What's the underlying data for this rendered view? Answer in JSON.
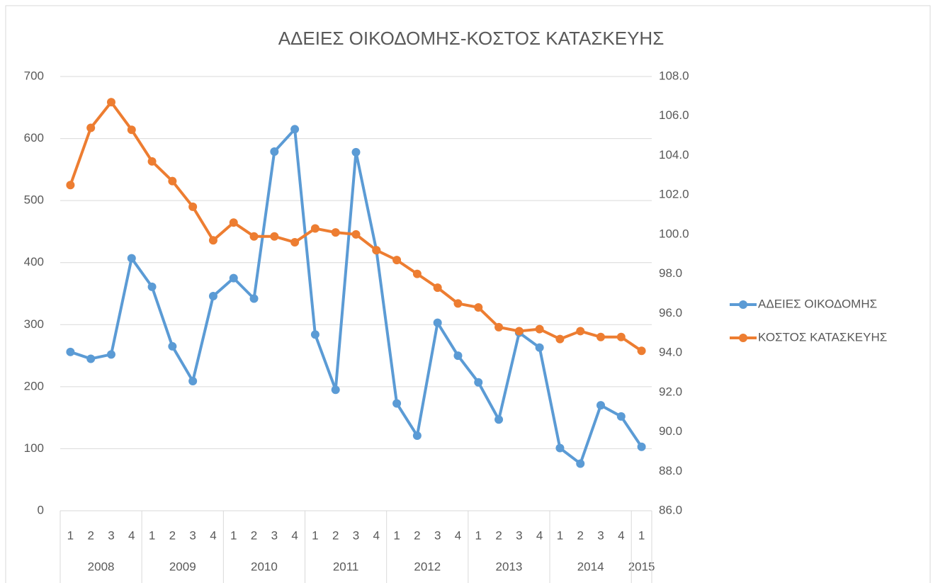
{
  "chart_data": {
    "type": "line",
    "title": "ΑΔΕΙΕΣ ΟΙΚΟΔΟΜΗΣ-ΚΟΣΤΟΣ ΚΑΤΑΣΚΕΥΗΣ",
    "categories": [
      "1",
      "2",
      "3",
      "4",
      "1",
      "2",
      "3",
      "4",
      "1",
      "2",
      "3",
      "4",
      "1",
      "2",
      "3",
      "4",
      "1",
      "2",
      "3",
      "4",
      "1",
      "2",
      "3",
      "4",
      "1",
      "2",
      "3",
      "4",
      "1"
    ],
    "groups": [
      "2008",
      "2008",
      "2008",
      "2008",
      "2009",
      "2009",
      "2009",
      "2009",
      "2010",
      "2010",
      "2010",
      "2010",
      "2011",
      "2011",
      "2011",
      "2011",
      "2012",
      "2012",
      "2012",
      "2012",
      "2013",
      "2013",
      "2013",
      "2013",
      "2014",
      "2014",
      "2014",
      "2014",
      "2015"
    ],
    "series": [
      {
        "name": "ΑΔΕΙΕΣ ΟΙΚΟΔΟΜΗΣ",
        "color": "#5b9bd5",
        "axis": "y",
        "values": [
          256,
          245,
          252,
          407,
          361,
          265,
          209,
          346,
          375,
          342,
          579,
          615,
          284,
          195,
          578,
          420,
          173,
          121,
          303,
          250,
          207,
          147,
          287,
          263,
          101,
          76,
          170,
          152,
          103
        ]
      },
      {
        "name": "ΚΟΣΤΟΣ ΚΑΤΑΣΚΕΥΗΣ",
        "color": "#ed7d31",
        "axis": "y2",
        "values": [
          102.5,
          105.4,
          106.7,
          105.3,
          103.7,
          102.7,
          101.4,
          99.7,
          100.6,
          99.9,
          99.9,
          99.6,
          100.3,
          100.1,
          100.0,
          99.2,
          98.7,
          98.0,
          97.3,
          96.5,
          96.3,
          95.3,
          95.1,
          95.2,
          94.7,
          95.1,
          94.8,
          94.8,
          94.1
        ]
      }
    ],
    "ylim": [
      0,
      700
    ],
    "yticks": [
      0,
      100,
      200,
      300,
      400,
      500,
      600,
      700
    ],
    "y2lim": [
      86,
      108
    ],
    "y2ticks": [
      {
        "value": 86,
        "label": "86.0"
      },
      {
        "value": 88,
        "label": "88.0"
      },
      {
        "value": 90,
        "label": "90.0"
      },
      {
        "value": 92,
        "label": "92.0"
      },
      {
        "value": 94,
        "label": "94.0"
      },
      {
        "value": 96,
        "label": "96.0"
      },
      {
        "value": 98,
        "label": "98.0"
      },
      {
        "value": 100,
        "label": "100.0"
      },
      {
        "value": 102,
        "label": "102.0"
      },
      {
        "value": 104,
        "label": "104.0"
      },
      {
        "value": 106,
        "label": "106.0"
      },
      {
        "value": 108,
        "label": "108.0"
      }
    ],
    "grid": true,
    "legend": "right"
  }
}
